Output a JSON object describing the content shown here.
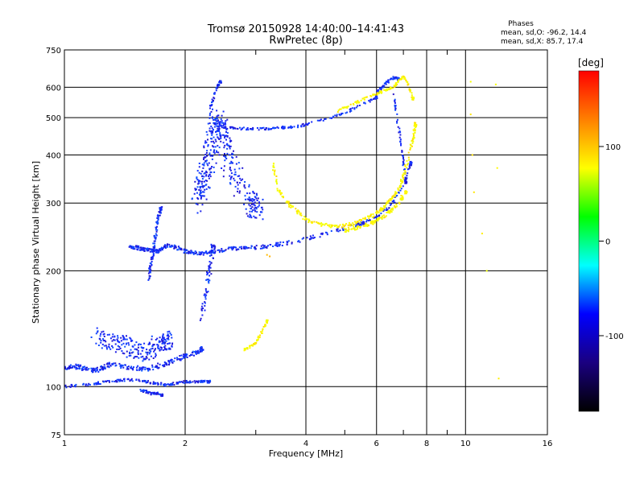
{
  "chart_data": {
    "type": "scatter",
    "title": "Tromsø 20150928 14:40:00–14:41:43",
    "subtitle": "RwPretec (8p)",
    "xlabel": "Frequency [MHz]",
    "ylabel": "Stationary phase Virtual Height [km]",
    "x_scale": "log",
    "y_scale": "log",
    "xlim": [
      1,
      16
    ],
    "ylim": [
      75,
      750
    ],
    "x_ticks": [
      1,
      2,
      4,
      6,
      8,
      10,
      16
    ],
    "x_tick_labels": [
      "1",
      "2",
      "4",
      "6",
      "8",
      "10",
      "16"
    ],
    "y_ticks": [
      75,
      100,
      200,
      300,
      400,
      500,
      600,
      750
    ],
    "y_tick_labels": [
      "75",
      "100",
      "200",
      "300",
      "400",
      "500",
      "600",
      "750"
    ],
    "grid": true,
    "phases": {
      "heading": "Phases",
      "line_o": "mean, sd,O: -96.2, 14.4",
      "line_x": "mean, sd,X: 85.7, 17.4"
    },
    "colorbar": {
      "label": "[deg]",
      "range": [
        -180,
        180
      ],
      "ticks": [
        100,
        0,
        -100
      ],
      "tick_labels": [
        "100",
        "0",
        "-100"
      ],
      "colors": [
        "#ff0000",
        "#ff8000",
        "#ffff00",
        "#00ff00",
        "#00ffff",
        "#0000ff",
        "#1a0080",
        "#000000"
      ]
    },
    "series": [
      {
        "x": [
          1.0,
          1.05,
          1.1,
          1.15,
          1.2,
          1.25,
          1.3,
          1.4,
          1.5,
          1.6,
          1.7,
          1.8,
          1.9,
          2.0,
          2.1,
          2.2
        ],
        "y": [
          112,
          113,
          112,
          111,
          110,
          112,
          114,
          113,
          112,
          111,
          113,
          115,
          117,
          120,
          122,
          125
        ],
        "phase": -100,
        "spread": 4
      },
      {
        "x": [
          1.0,
          1.1,
          1.2,
          1.3,
          1.4,
          1.5,
          1.6,
          1.7,
          1.8,
          1.9,
          2.0,
          2.1,
          2.2,
          2.3
        ],
        "y": [
          100,
          101,
          102,
          103,
          104,
          104,
          103,
          102,
          101,
          102,
          103,
          103,
          103,
          103
        ],
        "phase": -100,
        "spread": 2
      },
      {
        "x": [
          1.2,
          1.3,
          1.4,
          1.5,
          1.6,
          1.7,
          1.8
        ],
        "y": [
          135,
          130,
          128,
          125,
          122,
          130,
          132
        ],
        "phase": -100,
        "spread": 15
      },
      {
        "x": [
          1.55,
          1.6,
          1.65,
          1.7,
          1.75
        ],
        "y": [
          98,
          97,
          96,
          96,
          95
        ],
        "phase": -100,
        "spread": 2
      },
      {
        "x": [
          1.45,
          1.5,
          1.55,
          1.6,
          1.65,
          1.7,
          1.75,
          1.8,
          1.9,
          2.0,
          2.1,
          2.2,
          2.3,
          2.4,
          2.6,
          2.8,
          3.0,
          3.2,
          3.5,
          4.0,
          4.5,
          5.0,
          5.5,
          6.0,
          6.5,
          7.0,
          7.3
        ],
        "y": [
          232,
          230,
          228,
          227,
          226,
          225,
          228,
          233,
          230,
          225,
          223,
          222,
          223,
          225,
          228,
          229,
          230,
          232,
          235,
          242,
          250,
          258,
          265,
          275,
          295,
          330,
          380
        ],
        "phase": -100,
        "spread": 3
      },
      {
        "x": [
          1.62,
          1.64,
          1.66,
          1.68,
          1.7,
          1.72,
          1.74
        ],
        "y": [
          190,
          205,
          220,
          240,
          260,
          280,
          290
        ],
        "phase": -100,
        "spread": 3
      },
      {
        "x": [
          2.15,
          2.2,
          2.25,
          2.3,
          2.35,
          2.4,
          2.45,
          2.5,
          2.6,
          2.8,
          3.0
        ],
        "y": [
          300,
          330,
          360,
          400,
          450,
          500,
          470,
          420,
          370,
          320,
          290
        ],
        "phase": -100,
        "spread": 18
      },
      {
        "x": [
          2.2,
          2.25,
          2.3,
          2.35
        ],
        "y": [
          150,
          175,
          200,
          230
        ],
        "phase": -100,
        "spread": 5
      },
      {
        "x": [
          2.3,
          2.35,
          2.4,
          2.45
        ],
        "y": [
          520,
          560,
          600,
          620
        ],
        "phase": -100,
        "spread": 2
      },
      {
        "x": [
          2.45,
          2.6,
          2.8,
          3.0,
          3.2,
          3.4,
          3.6,
          3.8,
          4.0,
          4.5,
          5.0,
          5.5,
          6.0
        ],
        "y": [
          475,
          470,
          468,
          468,
          468,
          470,
          472,
          475,
          480,
          495,
          515,
          540,
          565
        ],
        "phase": -100,
        "spread": 2
      },
      {
        "x": [
          6.0,
          6.2,
          6.4,
          6.6,
          6.8
        ],
        "y": [
          580,
          600,
          620,
          635,
          630
        ],
        "phase": -100,
        "spread": 2
      },
      {
        "x": [
          6.6,
          6.75,
          6.9,
          7.0,
          7.1
        ],
        "y": [
          575,
          500,
          430,
          380,
          340
        ],
        "phase": -100,
        "spread": 2
      },
      {
        "x": [
          3.3,
          3.4,
          3.6,
          3.8,
          4.0,
          4.3,
          4.6,
          5.0,
          5.3,
          5.6,
          5.9,
          6.2,
          6.5,
          6.8,
          7.0,
          7.2,
          7.4,
          7.5
        ],
        "y": [
          380,
          330,
          300,
          285,
          272,
          265,
          262,
          262,
          266,
          272,
          280,
          290,
          305,
          325,
          350,
          390,
          440,
          480
        ],
        "phase": 100,
        "spread": 3
      },
      {
        "x": [
          5.0,
          5.3,
          5.6,
          5.9,
          6.2,
          6.5,
          6.8,
          7.1
        ],
        "y": [
          255,
          258,
          262,
          268,
          275,
          285,
          300,
          320
        ],
        "phase": 100,
        "spread": 3
      },
      {
        "x": [
          4.8,
          5.2,
          5.6,
          6.0,
          6.3,
          6.6,
          6.8,
          7.0,
          7.2,
          7.4
        ],
        "y": [
          520,
          540,
          560,
          575,
          590,
          600,
          620,
          640,
          610,
          560
        ],
        "phase": 100,
        "spread": 2
      },
      {
        "x": [
          2.8,
          2.9,
          3.0,
          3.1,
          3.2
        ],
        "y": [
          125,
          127,
          130,
          138,
          148
        ],
        "phase": 100,
        "spread": 2
      },
      {
        "x": [
          3.2,
          3.25
        ],
        "y": [
          220,
          218
        ],
        "phase": 120,
        "spread": 1
      },
      {
        "x": [
          10.3,
          10.3,
          10.4,
          10.5,
          11.0,
          11.3,
          11.9,
          12.0,
          12.1
        ],
        "y": [
          620,
          510,
          400,
          320,
          250,
          200,
          610,
          370,
          105
        ],
        "phase": 100,
        "spread": 1
      }
    ]
  }
}
